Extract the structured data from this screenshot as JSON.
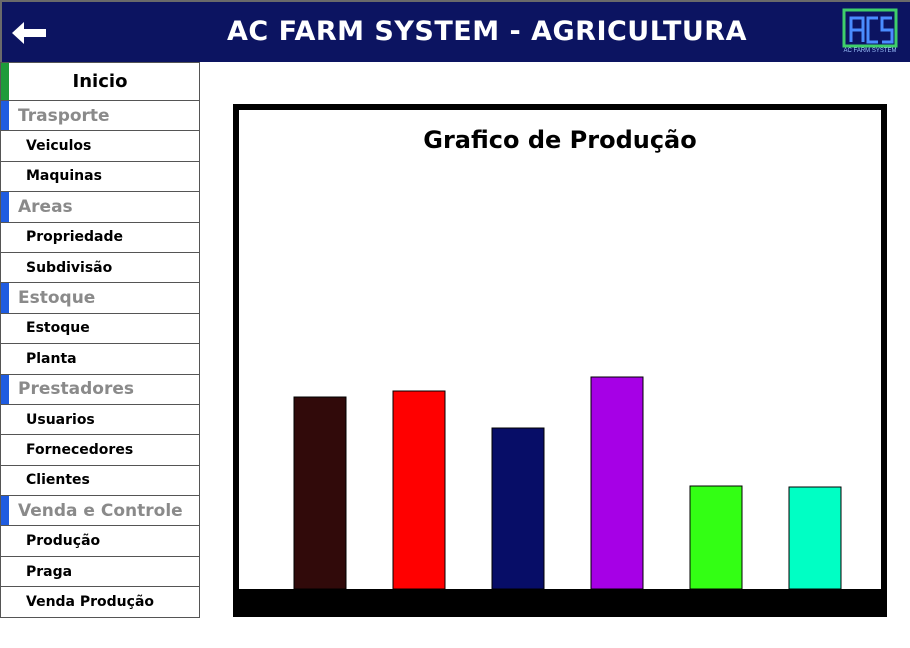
{
  "header": {
    "title": "AC FARM SYSTEM - AGRICULTURA",
    "back_icon": "arrow-left-icon",
    "logo_caption": "AC FARM SYSTEM",
    "colors": {
      "background": "#0c1461",
      "logo": "#3ecf6a"
    }
  },
  "sidebar": {
    "home": "Inicio",
    "sections": [
      {
        "title": "Trasporte",
        "items": [
          "Veiculos",
          "Maquinas"
        ]
      },
      {
        "title": "Areas",
        "items": [
          "Propriedade",
          "Subdivisão"
        ]
      },
      {
        "title": "Estoque",
        "items": [
          "Estoque",
          "Planta"
        ]
      },
      {
        "title": "Prestadores",
        "items": [
          "Usuarios",
          "Fornecedores",
          "Clientes"
        ]
      },
      {
        "title": "Venda e Controle",
        "items": [
          "Produção",
          "Praga",
          "Venda Produção"
        ]
      }
    ]
  },
  "chart_data": {
    "type": "bar",
    "title": "Grafico de Produção",
    "values": [
      192,
      198,
      161,
      212,
      103,
      102
    ],
    "colors": [
      "#310a0a",
      "#ff0000",
      "#070d67",
      "#a600e6",
      "#33ff14",
      "#00ffc4"
    ],
    "ylim": [
      0,
      430
    ],
    "grid": false
  }
}
